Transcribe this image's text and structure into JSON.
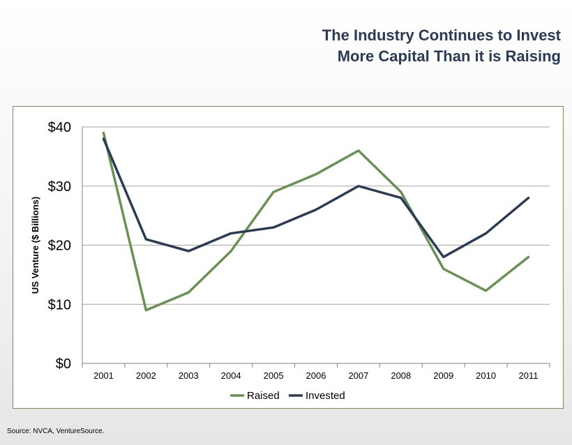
{
  "title_line1": "The Industry Continues to Invest",
  "title_line2": "More Capital Than it is Raising",
  "source": "Source: NVCA, VentureSource.",
  "chart_data": {
    "type": "line",
    "title": "The Industry Continues to Invest More Capital Than it is Raising",
    "ylabel": "US Venture ($ Billions)",
    "xlabel": "",
    "categories": [
      "2001",
      "2002",
      "2003",
      "2004",
      "2005",
      "2006",
      "2007",
      "2008",
      "2009",
      "2010",
      "2011"
    ],
    "ylim": [
      0,
      40
    ],
    "yticks": [
      0,
      10,
      20,
      30,
      40
    ],
    "ytick_labels": [
      "$0",
      "$10",
      "$20",
      "$30",
      "$40"
    ],
    "grid": "horizontal",
    "legend": "bottom",
    "series": [
      {
        "name": "Raised",
        "color": "#6a9155",
        "values": [
          39,
          9,
          12,
          19,
          29,
          32,
          36,
          29,
          16,
          12.3,
          18
        ]
      },
      {
        "name": "Invested",
        "color": "#2a3b55",
        "values": [
          38,
          21,
          19,
          22,
          23,
          26,
          30,
          28,
          18,
          22,
          28
        ]
      }
    ]
  }
}
